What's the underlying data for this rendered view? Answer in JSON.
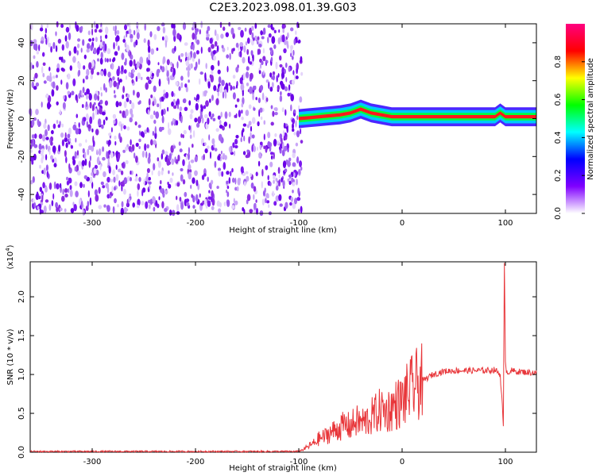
{
  "title": "C2E3.2023.098.01.39.G03",
  "chart_data": [
    {
      "type": "heatmap",
      "name": "spectrogram",
      "xlabel": "Height of straight line (km)",
      "ylabel": "Frequency (Hz)",
      "xlim": [
        -360,
        130
      ],
      "ylim": [
        -50,
        50
      ],
      "xticks": [
        -300,
        -200,
        -100,
        0,
        100
      ],
      "yticks": [
        -40,
        -20,
        0,
        20,
        40
      ],
      "xtick_labels": [
        "-300",
        "-200",
        "-100",
        "0",
        "100"
      ],
      "ytick_labels": [
        "-40",
        "-20",
        "0",
        "20",
        "40"
      ],
      "noise_region_x": [
        -360,
        -97
      ],
      "signal_track": {
        "x": [
          -100,
          -90,
          -80,
          -70,
          -60,
          -50,
          -40,
          -30,
          -20,
          -10,
          0,
          10,
          30,
          50,
          70,
          90,
          95,
          100,
          110,
          130
        ],
        "y": [
          0,
          0.5,
          1,
          1.5,
          2,
          3,
          5,
          3,
          2,
          1,
          1,
          1,
          1,
          1,
          1,
          1,
          3,
          1,
          1,
          1
        ]
      },
      "colorbar": {
        "label": "Normalized spectral amplitude",
        "range": [
          0,
          1
        ],
        "ticks": [
          0.0,
          0.2,
          0.4,
          0.6,
          0.8
        ],
        "tick_labels": [
          "0.0",
          "0.2",
          "0.4",
          "0.6",
          "0.8"
        ],
        "colors": [
          "#ffffff",
          "#8000ff",
          "#0000ff",
          "#00ffff",
          "#00ff00",
          "#ffff00",
          "#ff0000",
          "#ff0080"
        ]
      }
    },
    {
      "type": "line",
      "name": "snr",
      "xlabel": "Height of straight line (km)",
      "ylabel": "SNR (10 * v/v)",
      "scale_label": "(x10",
      "scale_exponent": "4",
      "scale_close": ")",
      "xlim": [
        -360,
        130
      ],
      "ylim": [
        0,
        2.45
      ],
      "xticks": [
        -300,
        -200,
        -100,
        0,
        100
      ],
      "yticks": [
        0.0,
        0.5,
        1.0,
        1.5,
        2.0
      ],
      "xtick_labels": [
        "-300",
        "-200",
        "-100",
        "0",
        "100"
      ],
      "ytick_labels": [
        "0.0",
        "0.5",
        "1.0",
        "1.5",
        "2.0"
      ],
      "color": "#e8363a",
      "series": [
        {
          "x": [
            -360,
            -300,
            -200,
            -110,
            -100,
            -95,
            -90,
            -85,
            -80,
            -75,
            -70,
            -65,
            -60,
            -55,
            -50,
            -45,
            -40,
            -35,
            -30,
            -25,
            -20,
            -15,
            -10,
            -5,
            0,
            5,
            10,
            15,
            20,
            25,
            30,
            35,
            40,
            50,
            60,
            70,
            80,
            90,
            95,
            97,
            98,
            99,
            100,
            101,
            102,
            105,
            110,
            120,
            130
          ],
          "y": [
            0.01,
            0.01,
            0.01,
            0.01,
            0.01,
            0.04,
            0.08,
            0.12,
            0.18,
            0.2,
            0.25,
            0.28,
            0.32,
            0.35,
            0.33,
            0.4,
            0.38,
            0.4,
            0.45,
            0.5,
            0.55,
            0.52,
            0.58,
            0.62,
            0.65,
            0.75,
            0.82,
            0.88,
            0.92,
            0.96,
            1.0,
            1.02,
            1.04,
            1.05,
            1.05,
            1.05,
            1.05,
            1.06,
            1.0,
            0.6,
            0.3,
            2.4,
            1.2,
            1.05,
            1.02,
            1.05,
            1.04,
            1.03,
            1.02
          ]
        }
      ]
    }
  ]
}
